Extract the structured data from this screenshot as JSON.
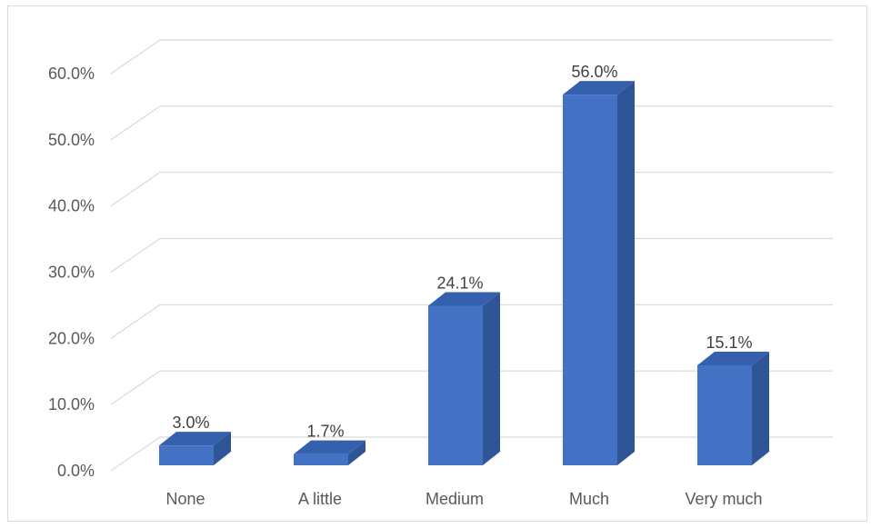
{
  "chart_data": {
    "type": "bar",
    "style": "3d-column",
    "categories": [
      "None",
      "A little",
      "Medium",
      "Much",
      "Very much"
    ],
    "values": [
      3.0,
      1.7,
      24.1,
      56.0,
      15.1
    ],
    "data_labels": [
      "3.0%",
      "1.7%",
      "24.1%",
      "56.0%",
      "15.1%"
    ],
    "y_ticks": [
      "0.0%",
      "10.0%",
      "20.0%",
      "30.0%",
      "40.0%",
      "50.0%",
      "60.0%"
    ],
    "ylim": [
      0,
      60
    ],
    "grid": true,
    "title": "",
    "xlabel": "",
    "ylabel": ""
  },
  "colors": {
    "bar_front": "#4472c4",
    "bar_side": "#2f5597",
    "bar_top": "#3560ad",
    "grid": "#d9d9d9",
    "text": "#595959"
  }
}
